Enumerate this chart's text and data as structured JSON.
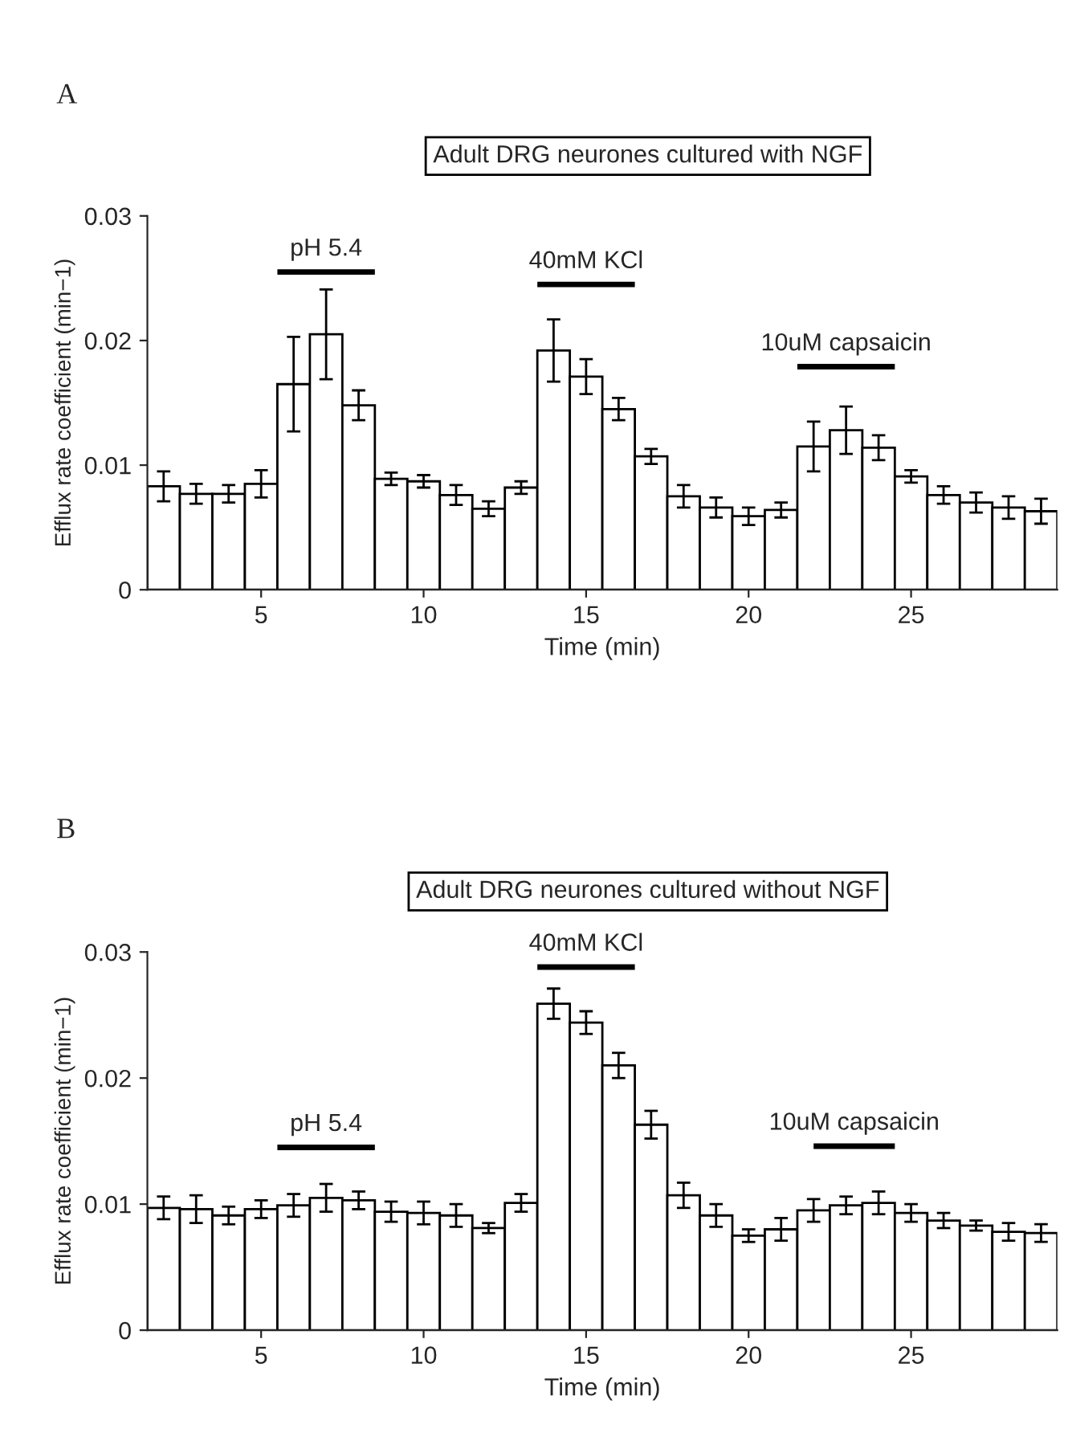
{
  "chart_data": [
    {
      "type": "bar",
      "title": "Adult DRG neurones cultured with NGF",
      "xlabel": "Time (min)",
      "ylabel": "Efflux rate coefficient (min−1)",
      "annotations": [
        "A"
      ],
      "x": [
        2,
        3,
        4,
        5,
        6,
        7,
        8,
        9,
        10,
        11,
        12,
        13,
        14,
        15,
        16,
        17,
        18,
        19,
        20,
        21,
        22,
        23,
        24,
        25,
        26,
        27,
        28,
        29
      ],
      "series": [
        {
          "color": "#ffffff",
          "values": [
            0.0083,
            0.0077,
            0.0077,
            0.0085,
            0.0165,
            0.0205,
            0.0148,
            0.0089,
            0.0087,
            0.0076,
            0.0065,
            0.0082,
            0.0192,
            0.0171,
            0.0145,
            0.0107,
            0.0075,
            0.0066,
            0.0059,
            0.0064,
            0.0115,
            0.0128,
            0.0114,
            0.0091,
            0.0076,
            0.007,
            0.0066,
            0.0063
          ],
          "errors": [
            0.0012,
            0.0008,
            0.0007,
            0.0011,
            0.0038,
            0.0036,
            0.0012,
            0.0005,
            0.0005,
            0.0008,
            0.0006,
            0.0005,
            0.0025,
            0.0014,
            0.0009,
            0.0006,
            0.0009,
            0.0008,
            0.0007,
            0.0006,
            0.002,
            0.0019,
            0.001,
            0.0005,
            0.0007,
            0.0008,
            0.0009,
            0.001
          ]
        },
        {
          "type": "line",
          "name": "pH 5.4",
          "color": "#000000",
          "x": [
            5.5,
            8.5
          ],
          "values": [
            0.0255,
            0.0255
          ]
        },
        {
          "type": "line",
          "name": "40mM KCl",
          "color": "#000000",
          "x": [
            13.5,
            16.5
          ],
          "values": [
            0.0245,
            0.0245
          ]
        },
        {
          "type": "line",
          "name": "10uM capsaicin",
          "color": "#000000",
          "x": [
            21.5,
            24.5
          ],
          "values": [
            0.0179,
            0.0179
          ]
        }
      ],
      "xlim": [
        1.5,
        29.5
      ],
      "xticks": [
        5,
        10,
        15,
        20,
        25
      ],
      "ylim": [
        0,
        0.03
      ],
      "yticks": [
        0,
        0.01,
        0.02,
        0.03
      ],
      "grid": false,
      "marker": "none",
      "line_style": "solid"
    },
    {
      "type": "bar",
      "title": "Adult DRG neurones cultured without NGF",
      "xlabel": "Time (min)",
      "ylabel": "Efflux rate coefficient (min−1)",
      "annotations": [
        "B"
      ],
      "x": [
        2,
        3,
        4,
        5,
        6,
        7,
        8,
        9,
        10,
        11,
        12,
        13,
        14,
        15,
        16,
        17,
        18,
        19,
        20,
        21,
        22,
        23,
        24,
        25,
        26,
        27,
        28,
        29
      ],
      "series": [
        {
          "color": "#ffffff",
          "values": [
            0.0097,
            0.0096,
            0.0091,
            0.0096,
            0.0099,
            0.0105,
            0.0103,
            0.0094,
            0.0093,
            0.0091,
            0.0081,
            0.0101,
            0.0259,
            0.0244,
            0.021,
            0.0163,
            0.0107,
            0.0091,
            0.0075,
            0.008,
            0.0095,
            0.0099,
            0.0101,
            0.0093,
            0.0087,
            0.0083,
            0.0078,
            0.0077
          ],
          "errors": [
            0.0009,
            0.0011,
            0.0007,
            0.0007,
            0.0009,
            0.0011,
            0.0007,
            0.0008,
            0.0009,
            0.0009,
            0.0004,
            0.0007,
            0.0012,
            0.0009,
            0.001,
            0.0011,
            0.001,
            0.0009,
            0.0005,
            0.0009,
            0.0009,
            0.0007,
            0.0009,
            0.0007,
            0.0006,
            0.0004,
            0.0007,
            0.0007
          ]
        },
        {
          "type": "line",
          "name": "pH 5.4",
          "color": "#000000",
          "x": [
            5.5,
            8.5
          ],
          "values": [
            0.0145,
            0.0145
          ]
        },
        {
          "type": "line",
          "name": "40mM KCl",
          "color": "#000000",
          "x": [
            13.5,
            16.5
          ],
          "values": [
            0.0288,
            0.0288
          ]
        },
        {
          "type": "line",
          "name": "10uM capsaicin",
          "color": "#000000",
          "x": [
            22,
            24.5
          ],
          "values": [
            0.0146,
            0.0146
          ]
        }
      ],
      "xlim": [
        1.5,
        29.5
      ],
      "xticks": [
        5,
        10,
        15,
        20,
        25
      ],
      "ylim": [
        0,
        0.03
      ],
      "yticks": [
        0,
        0.01,
        0.02,
        0.03
      ],
      "grid": false,
      "marker": "none",
      "line_style": "solid"
    }
  ]
}
